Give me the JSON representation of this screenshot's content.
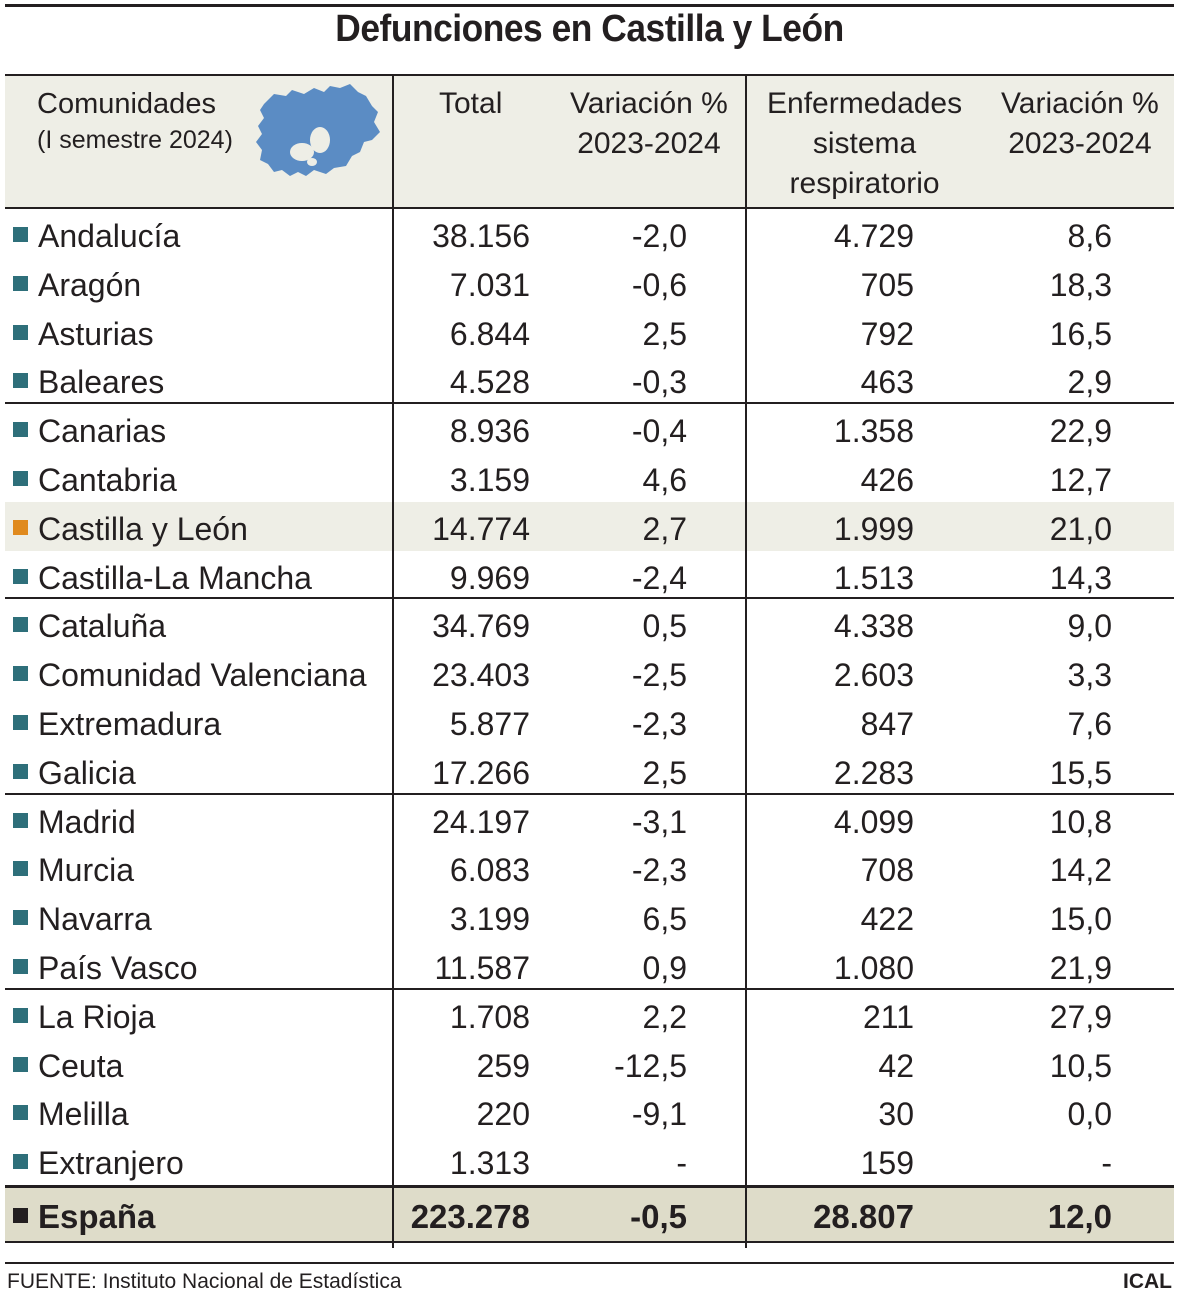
{
  "title": "Defunciones en Castilla y León",
  "colors": {
    "row_marker": "#2e6f7a",
    "highlight_marker": "#e08a1e",
    "total_marker": "#231f20",
    "header_bg": "#eeeee6",
    "total_bg": "#dedcc9",
    "map": "#5b8cc4"
  },
  "header": {
    "col1_line1": "Comunidades",
    "col1_line2": "(I semestre 2024)",
    "col2": "Total",
    "col3_line1": "Variación %",
    "col3_line2": "2023-2024",
    "col4_line1": "Enfermedades",
    "col4_line2": "sistema",
    "col4_line3": "respiratorio",
    "col5_line1": "Variación %",
    "col5_line2": "2023-2024",
    "map_icon": "castilla-y-leon-map-icon"
  },
  "chart_data": {
    "type": "table",
    "title": "Defunciones en Castilla y León",
    "columns": [
      "Comunidades (I semestre 2024)",
      "Total",
      "Variación % 2023-2024",
      "Enfermedades sistema respiratorio",
      "Variación % 2023-2024"
    ],
    "rows": [
      {
        "name": "Andalucía",
        "total": "38.156",
        "var_total": "-2,0",
        "resp": "4.729",
        "var_resp": "8,6"
      },
      {
        "name": "Aragón",
        "total": "7.031",
        "var_total": "-0,6",
        "resp": "705",
        "var_resp": "18,3"
      },
      {
        "name": "Asturias",
        "total": "6.844",
        "var_total": "2,5",
        "resp": "792",
        "var_resp": "16,5"
      },
      {
        "name": "Baleares",
        "total": "4.528",
        "var_total": "-0,3",
        "resp": "463",
        "var_resp": "2,9"
      },
      {
        "name": "Canarias",
        "total": "8.936",
        "var_total": "-0,4",
        "resp": "1.358",
        "var_resp": "22,9"
      },
      {
        "name": "Cantabria",
        "total": "3.159",
        "var_total": "4,6",
        "resp": "426",
        "var_resp": "12,7"
      },
      {
        "name": "Castilla y León",
        "total": "14.774",
        "var_total": "2,7",
        "resp": "1.999",
        "var_resp": "21,0"
      },
      {
        "name": "Castilla-La Mancha",
        "total": "9.969",
        "var_total": "-2,4",
        "resp": "1.513",
        "var_resp": "14,3"
      },
      {
        "name": "Cataluña",
        "total": "34.769",
        "var_total": "0,5",
        "resp": "4.338",
        "var_resp": "9,0"
      },
      {
        "name": "Comunidad Valenciana",
        "total": "23.403",
        "var_total": "-2,5",
        "resp": "2.603",
        "var_resp": "3,3"
      },
      {
        "name": "Extremadura",
        "total": "5.877",
        "var_total": "-2,3",
        "resp": "847",
        "var_resp": "7,6"
      },
      {
        "name": "Galicia",
        "total": "17.266",
        "var_total": "2,5",
        "resp": "2.283",
        "var_resp": "15,5"
      },
      {
        "name": "Madrid",
        "total": "24.197",
        "var_total": "-3,1",
        "resp": "4.099",
        "var_resp": "10,8"
      },
      {
        "name": "Murcia",
        "total": "6.083",
        "var_total": "-2,3",
        "resp": "708",
        "var_resp": "14,2"
      },
      {
        "name": "Navarra",
        "total": "3.199",
        "var_total": "6,5",
        "resp": "422",
        "var_resp": "15,0"
      },
      {
        "name": "País Vasco",
        "total": "11.587",
        "var_total": "0,9",
        "resp": "1.080",
        "var_resp": "21,9"
      },
      {
        "name": "La Rioja",
        "total": "1.708",
        "var_total": "2,2",
        "resp": "211",
        "var_resp": "27,9"
      },
      {
        "name": "Ceuta",
        "total": "259",
        "var_total": "-12,5",
        "resp": "42",
        "var_resp": "10,5"
      },
      {
        "name": "Melilla",
        "total": "220",
        "var_total": "-9,1",
        "resp": "30",
        "var_resp": "0,0"
      },
      {
        "name": "Extranjero",
        "total": "1.313",
        "var_total": "-",
        "resp": "159",
        "var_resp": "-"
      }
    ],
    "highlight_row": "Castilla y León",
    "total_row": {
      "name": "España",
      "total": "223.278",
      "var_total": "-0,5",
      "resp": "28.807",
      "var_resp": "12,0"
    }
  },
  "footer": {
    "source": "FUENTE: Instituto Nacional de Estadística",
    "credit": "ICAL"
  }
}
